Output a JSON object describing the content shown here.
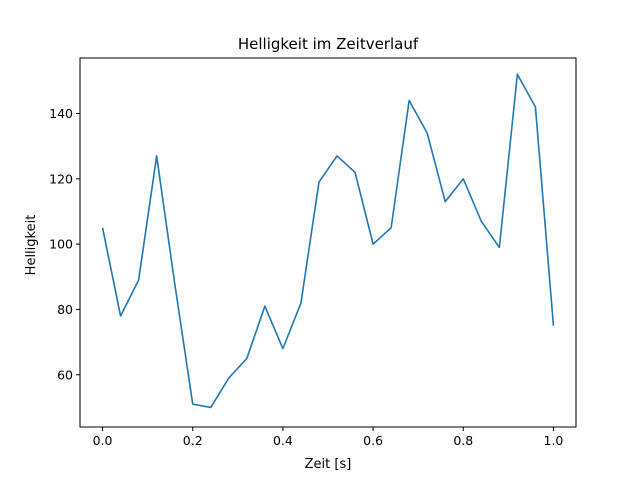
{
  "chart_data": {
    "type": "line",
    "title": "Helligkeit im Zeitverlauf",
    "xlabel": "Zeit [s]",
    "ylabel": "Helligkeit",
    "xlim": [
      -0.05,
      1.05
    ],
    "ylim": [
      44,
      157
    ],
    "xticks": [
      0.0,
      0.2,
      0.4,
      0.6,
      0.8,
      1.0
    ],
    "xtick_labels": [
      "0.0",
      "0.2",
      "0.4",
      "0.6",
      "0.8",
      "1.0"
    ],
    "yticks": [
      60,
      80,
      100,
      120,
      140
    ],
    "ytick_labels": [
      "60",
      "80",
      "100",
      "120",
      "140"
    ],
    "grid": false,
    "series": [
      {
        "color": "#1f77b4",
        "x": [
          0.0,
          0.04,
          0.08,
          0.12,
          0.16,
          0.2,
          0.24,
          0.28,
          0.32,
          0.36,
          0.4,
          0.44,
          0.48,
          0.52,
          0.56,
          0.6,
          0.64,
          0.68,
          0.72,
          0.76,
          0.8,
          0.84,
          0.88,
          0.92,
          0.96,
          1.0
        ],
        "values": [
          105,
          78,
          89,
          127,
          88,
          51,
          50,
          59,
          65,
          81,
          68,
          82,
          119,
          127,
          122,
          100,
          105,
          144,
          134,
          113,
          120,
          107,
          99,
          152,
          142,
          75
        ]
      }
    ]
  }
}
